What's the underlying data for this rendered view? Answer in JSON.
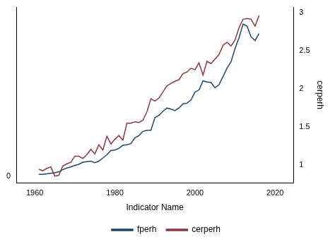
{
  "chart_data": {
    "type": "line",
    "x_label": "Indicator Name",
    "y2_label": "cerperh",
    "x": [
      1961,
      1962,
      1963,
      1964,
      1965,
      1966,
      1967,
      1968,
      1969,
      1970,
      1971,
      1972,
      1973,
      1974,
      1975,
      1976,
      1977,
      1978,
      1979,
      1980,
      1981,
      1982,
      1983,
      1984,
      1985,
      1986,
      1987,
      1988,
      1989,
      1990,
      1991,
      1992,
      1993,
      1994,
      1995,
      1996,
      1997,
      1998,
      1999,
      2000,
      2001,
      2002,
      2003,
      2004,
      2005,
      2006,
      2007,
      2008,
      2009,
      2010,
      2011,
      2012,
      2013,
      2014,
      2015,
      2016
    ],
    "series": [
      {
        "name": "fperh",
        "color": "#1a476f",
        "axis": "y",
        "values": [
          0.03,
          0.03,
          0.04,
          0.05,
          0.06,
          0.08,
          0.12,
          0.15,
          0.17,
          0.2,
          0.22,
          0.26,
          0.27,
          0.28,
          0.25,
          0.28,
          0.34,
          0.4,
          0.48,
          0.49,
          0.52,
          0.58,
          0.59,
          0.61,
          0.72,
          0.76,
          0.84,
          0.86,
          0.86,
          1.1,
          1.14,
          1.22,
          1.28,
          1.26,
          1.23,
          1.28,
          1.36,
          1.37,
          1.43,
          1.58,
          1.62,
          1.79,
          1.77,
          1.76,
          1.66,
          1.72,
          1.87,
          2.03,
          2.15,
          2.4,
          2.6,
          2.86,
          2.82,
          2.62,
          2.55,
          2.68
        ]
      },
      {
        "name": "cerperh",
        "color": "#90353b",
        "axis": "y2",
        "values": [
          0.95,
          0.93,
          0.96,
          0.98,
          0.86,
          0.87,
          0.99,
          1.02,
          1.04,
          1.12,
          1.12,
          1.09,
          1.14,
          1.21,
          1.15,
          1.27,
          1.2,
          1.38,
          1.28,
          1.34,
          1.39,
          1.33,
          1.55,
          1.55,
          1.57,
          1.56,
          1.59,
          1.7,
          1.87,
          1.84,
          1.88,
          1.96,
          2.04,
          2.07,
          2.1,
          2.12,
          2.2,
          2.22,
          2.27,
          2.25,
          2.34,
          2.18,
          2.36,
          2.33,
          2.39,
          2.45,
          2.57,
          2.61,
          2.56,
          2.64,
          2.8,
          2.91,
          2.92,
          2.91,
          2.82,
          2.96
        ]
      }
    ],
    "xlim": [
      1955.4,
      2024.6
    ],
    "xticks": [
      1960,
      1980,
      2000,
      2020
    ],
    "ylim": [
      -0.13,
      3.18
    ],
    "yticks": [
      0
    ],
    "y2lim": [
      0.77,
      3.07
    ],
    "y2ticks": [
      1,
      1.5,
      2,
      2.5,
      3
    ],
    "grid": false,
    "legend": "bottom"
  }
}
